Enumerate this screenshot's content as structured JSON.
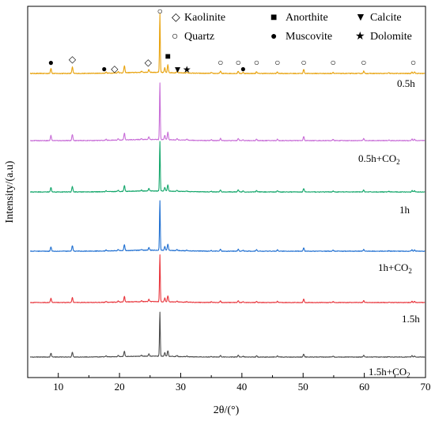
{
  "chart_data": {
    "type": "line",
    "title": "",
    "xlabel": "2θ/(°)",
    "ylabel": "Intensity/(a.u)",
    "xlim": [
      5,
      70
    ],
    "xticks": [
      10,
      20,
      30,
      40,
      50,
      60,
      70
    ],
    "grid": false,
    "legend_placement": "top-right",
    "legend": [
      {
        "symbol": "◇",
        "name": "Kaolinite"
      },
      {
        "symbol": "■",
        "name": "Anorthite"
      },
      {
        "symbol": "▼",
        "name": "Calcite"
      },
      {
        "symbol": "○",
        "name": "Quartz"
      },
      {
        "symbol": "●",
        "name": "Muscovite"
      },
      {
        "symbol": "★",
        "name": "Dolomite"
      }
    ],
    "peaks": [
      {
        "x": 8.8,
        "h": 0.09
      },
      {
        "x": 12.3,
        "h": 0.11
      },
      {
        "x": 17.8,
        "h": 0.02
      },
      {
        "x": 19.8,
        "h": 0.025
      },
      {
        "x": 20.8,
        "h": 0.12
      },
      {
        "x": 23.6,
        "h": 0.02
      },
      {
        "x": 24.8,
        "h": 0.05
      },
      {
        "x": 26.6,
        "h": 1.0
      },
      {
        "x": 27.4,
        "h": 0.08
      },
      {
        "x": 27.9,
        "h": 0.13
      },
      {
        "x": 29.4,
        "h": 0.02
      },
      {
        "x": 31.0,
        "h": 0.015
      },
      {
        "x": 35.0,
        "h": 0.015
      },
      {
        "x": 36.5,
        "h": 0.04
      },
      {
        "x": 39.4,
        "h": 0.04
      },
      {
        "x": 40.2,
        "h": 0.02
      },
      {
        "x": 42.4,
        "h": 0.03
      },
      {
        "x": 45.8,
        "h": 0.025
      },
      {
        "x": 50.1,
        "h": 0.07
      },
      {
        "x": 54.9,
        "h": 0.02
      },
      {
        "x": 59.9,
        "h": 0.04
      },
      {
        "x": 64.0,
        "h": 0.01
      },
      {
        "x": 67.8,
        "h": 0.03
      },
      {
        "x": 68.2,
        "h": 0.025
      }
    ],
    "series": [
      {
        "label": "0.5h",
        "label_sub": "",
        "color": "#E8A20C"
      },
      {
        "label": "0.5h+CO",
        "label_sub": "2",
        "color": "#C86DD7"
      },
      {
        "label": "1h",
        "label_sub": "",
        "color": "#12A66A"
      },
      {
        "label": "1h+CO",
        "label_sub": "2",
        "color": "#1F6FD1"
      },
      {
        "label": "1.5h",
        "label_sub": "",
        "color": "#E8333A"
      },
      {
        "label": "1.5h+CO",
        "label_sub": "2",
        "color": "#4A4A4A"
      }
    ],
    "markers": [
      {
        "symbol": "●",
        "x": 8.8
      },
      {
        "symbol": "◇",
        "x": 12.3
      },
      {
        "symbol": "●",
        "x": 17.5
      },
      {
        "symbol": "◇",
        "x": 19.2
      },
      {
        "symbol": "◇",
        "x": 24.7
      },
      {
        "symbol": "○",
        "x": 26.6
      },
      {
        "symbol": "■",
        "x": 27.9
      },
      {
        "symbol": "▼",
        "x": 29.5
      },
      {
        "symbol": "★",
        "x": 31.0
      },
      {
        "symbol": "○",
        "x": 36.5
      },
      {
        "symbol": "○",
        "x": 39.4
      },
      {
        "symbol": "●",
        "x": 40.2
      },
      {
        "symbol": "○",
        "x": 42.4
      },
      {
        "symbol": "○",
        "x": 45.8
      },
      {
        "symbol": "○",
        "x": 50.1
      },
      {
        "symbol": "○",
        "x": 54.9
      },
      {
        "symbol": "○",
        "x": 59.9
      },
      {
        "symbol": "○",
        "x": 68.0
      }
    ]
  }
}
